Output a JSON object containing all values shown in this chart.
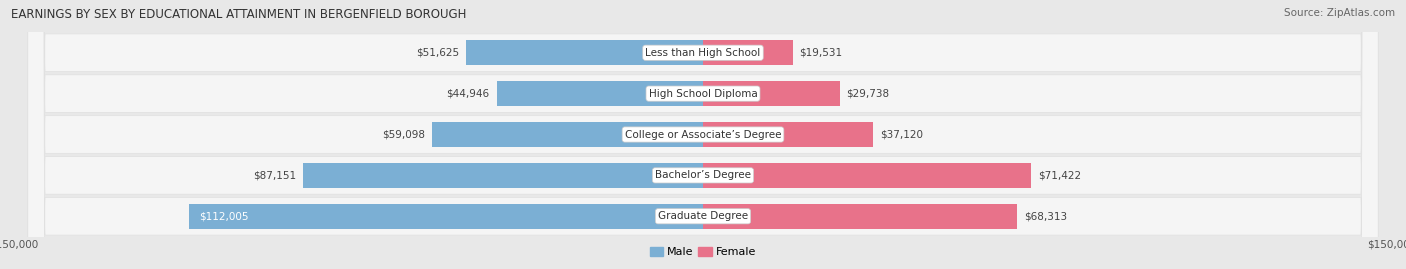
{
  "title": "EARNINGS BY SEX BY EDUCATIONAL ATTAINMENT IN BERGENFIELD BOROUGH",
  "source": "Source: ZipAtlas.com",
  "categories": [
    "Less than High School",
    "High School Diploma",
    "College or Associate’s Degree",
    "Bachelor’s Degree",
    "Graduate Degree"
  ],
  "male_values": [
    51625,
    44946,
    59098,
    87151,
    112005
  ],
  "female_values": [
    19531,
    29738,
    37120,
    71422,
    68313
  ],
  "max_val": 150000,
  "male_color": "#7bafd4",
  "female_color": "#e8728a",
  "bg_color": "#e8e8e8",
  "row_bg_color": "#f5f5f5",
  "row_bg_dark": "#e0e0e0",
  "x_tick_label": "$150,000",
  "legend_male": "Male",
  "legend_female": "Female"
}
